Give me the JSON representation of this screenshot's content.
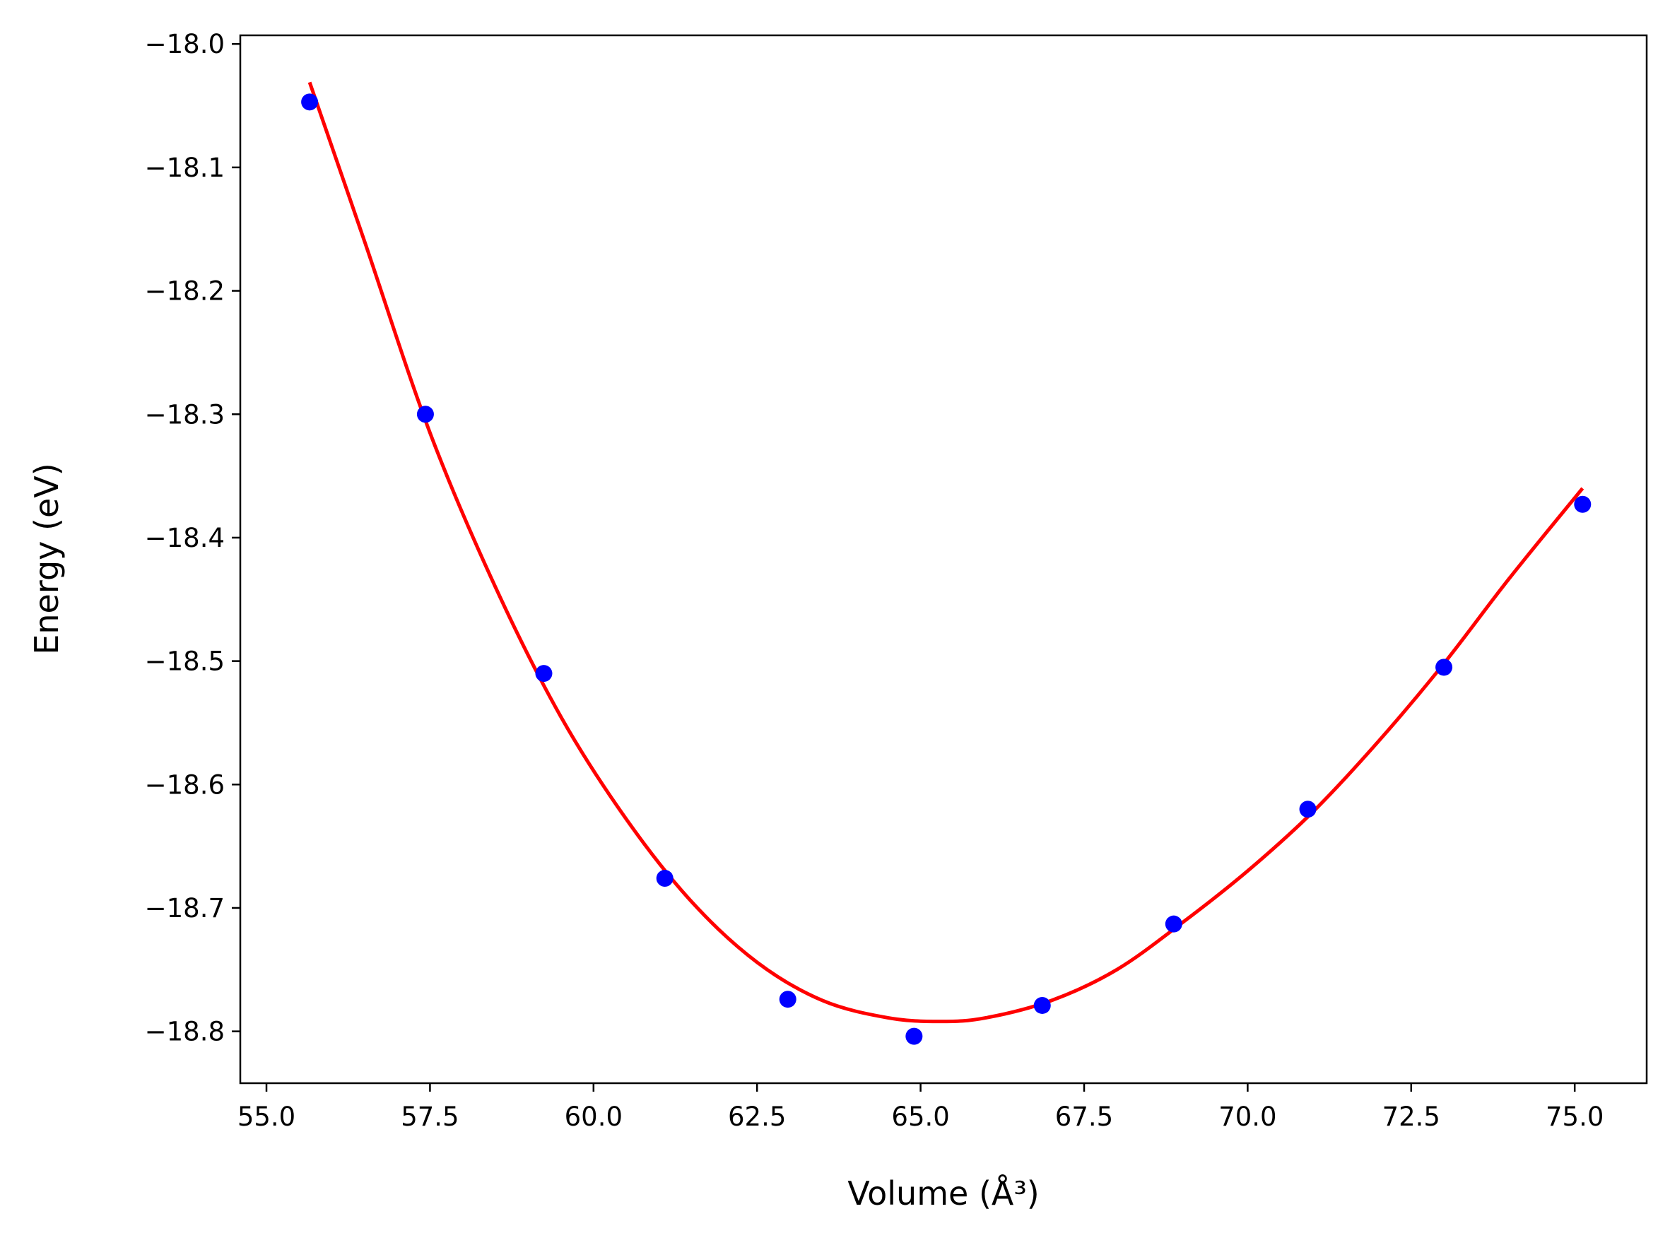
{
  "chart_data": {
    "type": "scatter",
    "title": "",
    "xlabel": "Volume (Å³)",
    "ylabel": "Energy (eV)",
    "xlim": [
      54.6,
      76.1
    ],
    "ylim": [
      -18.842,
      -17.993
    ],
    "xticks": [
      55.0,
      57.5,
      60.0,
      62.5,
      65.0,
      67.5,
      70.0,
      72.5,
      75.0
    ],
    "xtick_labels": [
      "55.0",
      "57.5",
      "60.0",
      "62.5",
      "65.0",
      "67.5",
      "70.0",
      "72.5",
      "75.0"
    ],
    "yticks": [
      -18.0,
      -18.1,
      -18.2,
      -18.3,
      -18.4,
      -18.5,
      -18.6,
      -18.7,
      -18.8
    ],
    "ytick_labels": [
      "−18.0",
      "−18.1",
      "−18.2",
      "−18.3",
      "−18.4",
      "−18.5",
      "−18.6",
      "−18.7",
      "−18.8"
    ],
    "grid": false,
    "series": [
      {
        "kind": "scatter",
        "color": "#0000ff",
        "points": [
          {
            "x": 55.66,
            "y": -18.047
          },
          {
            "x": 57.43,
            "y": -18.3
          },
          {
            "x": 59.24,
            "y": -18.51
          },
          {
            "x": 61.09,
            "y": -18.676
          },
          {
            "x": 62.97,
            "y": -18.774
          },
          {
            "x": 64.9,
            "y": -18.804
          },
          {
            "x": 66.86,
            "y": -18.779
          },
          {
            "x": 68.87,
            "y": -18.713
          },
          {
            "x": 70.92,
            "y": -18.62
          },
          {
            "x": 73.0,
            "y": -18.505
          },
          {
            "x": 75.12,
            "y": -18.373
          }
        ]
      },
      {
        "kind": "line",
        "color": "#ff0000",
        "points": [
          {
            "x": 55.66,
            "y": -18.031
          },
          {
            "x": 56.5,
            "y": -18.16
          },
          {
            "x": 57.5,
            "y": -18.315
          },
          {
            "x": 58.5,
            "y": -18.44
          },
          {
            "x": 59.5,
            "y": -18.545
          },
          {
            "x": 60.5,
            "y": -18.628
          },
          {
            "x": 61.5,
            "y": -18.695
          },
          {
            "x": 62.5,
            "y": -18.744
          },
          {
            "x": 63.5,
            "y": -18.775
          },
          {
            "x": 64.5,
            "y": -18.789
          },
          {
            "x": 65.3,
            "y": -18.792
          },
          {
            "x": 66.0,
            "y": -18.789
          },
          {
            "x": 67.0,
            "y": -18.775
          },
          {
            "x": 68.0,
            "y": -18.75
          },
          {
            "x": 69.0,
            "y": -18.712
          },
          {
            "x": 70.0,
            "y": -18.67
          },
          {
            "x": 71.0,
            "y": -18.622
          },
          {
            "x": 72.0,
            "y": -18.565
          },
          {
            "x": 73.0,
            "y": -18.502
          },
          {
            "x": 74.0,
            "y": -18.433
          },
          {
            "x": 75.12,
            "y": -18.36
          }
        ]
      }
    ]
  }
}
